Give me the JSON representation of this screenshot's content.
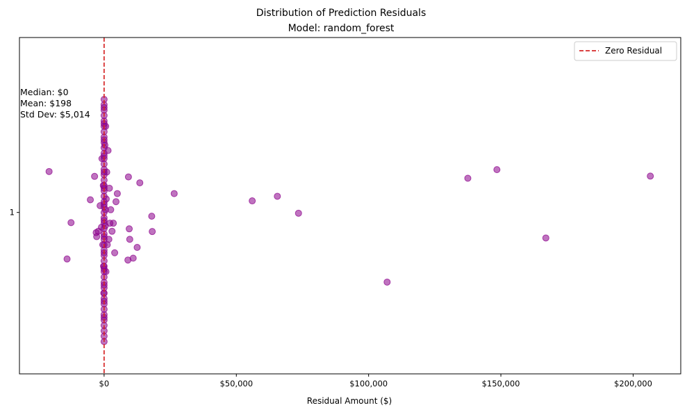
{
  "chart_data": {
    "type": "scatter",
    "title": "Distribution of Prediction Residuals",
    "subtitle": "Model: random_forest",
    "xlabel": "Residual Amount ($)",
    "ylabel": "",
    "xlim": [
      -32000,
      218000
    ],
    "ylim": [
      0.4,
      1.65
    ],
    "xticks": [
      0,
      50000,
      100000,
      150000,
      200000
    ],
    "xtick_labels": [
      "$0",
      "$50,000",
      "$100,000",
      "$150,000",
      "$200,000"
    ],
    "yticks": [
      1
    ],
    "ytick_labels": [
      "1"
    ],
    "grid": false,
    "legend": {
      "position": "top-right",
      "entries": [
        {
          "label": "Zero Residual",
          "color": "#d62728",
          "style": "dashed"
        }
      ]
    },
    "point_color": "#8b008b",
    "reference_line": {
      "x": 0,
      "color": "#d62728",
      "style": "dashed"
    },
    "stats": [
      "Median: $0",
      "Mean: $198",
      "Std Dev: $5,014"
    ],
    "series": [
      {
        "points": [
          [
            -20800,
            1.152
          ],
          [
            -12500,
            0.962
          ],
          [
            -14000,
            0.827
          ],
          [
            -5200,
            1.047
          ],
          [
            -3600,
            1.134
          ],
          [
            -3000,
            0.925
          ],
          [
            -2800,
            0.91
          ],
          [
            -2200,
            0.93
          ],
          [
            -1500,
            1.025
          ],
          [
            -1000,
            0.945
          ],
          [
            -800,
            1.2
          ],
          [
            -500,
            0.88
          ],
          [
            -300,
            1.1
          ],
          [
            -200,
            0.8
          ],
          [
            -100,
            0.7
          ],
          [
            0,
            1.4
          ],
          [
            0,
            1.38
          ],
          [
            0,
            1.36
          ],
          [
            0,
            1.34
          ],
          [
            0,
            1.32
          ],
          [
            0,
            1.3
          ],
          [
            0,
            1.28
          ],
          [
            0,
            1.26
          ],
          [
            0,
            1.24
          ],
          [
            0,
            1.22
          ],
          [
            0,
            1.2
          ],
          [
            0,
            1.18
          ],
          [
            0,
            1.16
          ],
          [
            0,
            1.14
          ],
          [
            0,
            1.12
          ],
          [
            0,
            1.1
          ],
          [
            0,
            1.08
          ],
          [
            0,
            1.06
          ],
          [
            0,
            1.04
          ],
          [
            0,
            1.02
          ],
          [
            0,
            1.0
          ],
          [
            0,
            0.98
          ],
          [
            0,
            0.96
          ],
          [
            0,
            0.94
          ],
          [
            0,
            0.92
          ],
          [
            0,
            0.9
          ],
          [
            0,
            0.88
          ],
          [
            0,
            0.86
          ],
          [
            0,
            0.84
          ],
          [
            0,
            0.82
          ],
          [
            0,
            0.8
          ],
          [
            0,
            0.78
          ],
          [
            0,
            0.76
          ],
          [
            0,
            0.74
          ],
          [
            0,
            0.72
          ],
          [
            0,
            0.7
          ],
          [
            0,
            0.68
          ],
          [
            0,
            0.66
          ],
          [
            0,
            0.64
          ],
          [
            0,
            0.62
          ],
          [
            0,
            0.6
          ],
          [
            0,
            0.58
          ],
          [
            0,
            0.56
          ],
          [
            0,
            0.54
          ],
          [
            0,
            0.52
          ],
          [
            0,
            1.42
          ],
          [
            0,
            1.39
          ],
          [
            0,
            1.33
          ],
          [
            0,
            1.27
          ],
          [
            0,
            1.21
          ],
          [
            0,
            1.15
          ],
          [
            0,
            1.09
          ],
          [
            0,
            1.03
          ],
          [
            0,
            0.97
          ],
          [
            0,
            0.91
          ],
          [
            0,
            0.85
          ],
          [
            0,
            0.79
          ],
          [
            0,
            0.73
          ],
          [
            0,
            0.67
          ],
          [
            0,
            0.61
          ],
          [
            300,
            1.25
          ],
          [
            400,
            0.95
          ],
          [
            500,
            1.01
          ],
          [
            600,
            1.32
          ],
          [
            700,
            0.78
          ],
          [
            800,
            1.05
          ],
          [
            1000,
            1.15
          ],
          [
            1200,
            0.88
          ],
          [
            1500,
            1.23
          ],
          [
            1800,
            0.9
          ],
          [
            2000,
            1.09
          ],
          [
            2200,
            0.96
          ],
          [
            2500,
            1.01
          ],
          [
            3000,
            0.93
          ],
          [
            3500,
            0.96
          ],
          [
            4000,
            0.85
          ],
          [
            4500,
            1.04
          ],
          [
            5000,
            1.07
          ],
          [
            9000,
            0.823
          ],
          [
            9200,
            1.132
          ],
          [
            9500,
            0.939
          ],
          [
            9700,
            0.9
          ],
          [
            11000,
            0.83
          ],
          [
            12500,
            0.87
          ],
          [
            13500,
            1.11
          ],
          [
            18000,
            0.986
          ],
          [
            18200,
            0.929
          ],
          [
            26500,
            1.07
          ],
          [
            56000,
            1.043
          ],
          [
            65500,
            1.06
          ],
          [
            73500,
            0.997
          ],
          [
            107000,
            0.741
          ],
          [
            137500,
            1.127
          ],
          [
            148500,
            1.159
          ],
          [
            167000,
            0.905
          ],
          [
            206500,
            1.135
          ]
        ]
      }
    ]
  }
}
